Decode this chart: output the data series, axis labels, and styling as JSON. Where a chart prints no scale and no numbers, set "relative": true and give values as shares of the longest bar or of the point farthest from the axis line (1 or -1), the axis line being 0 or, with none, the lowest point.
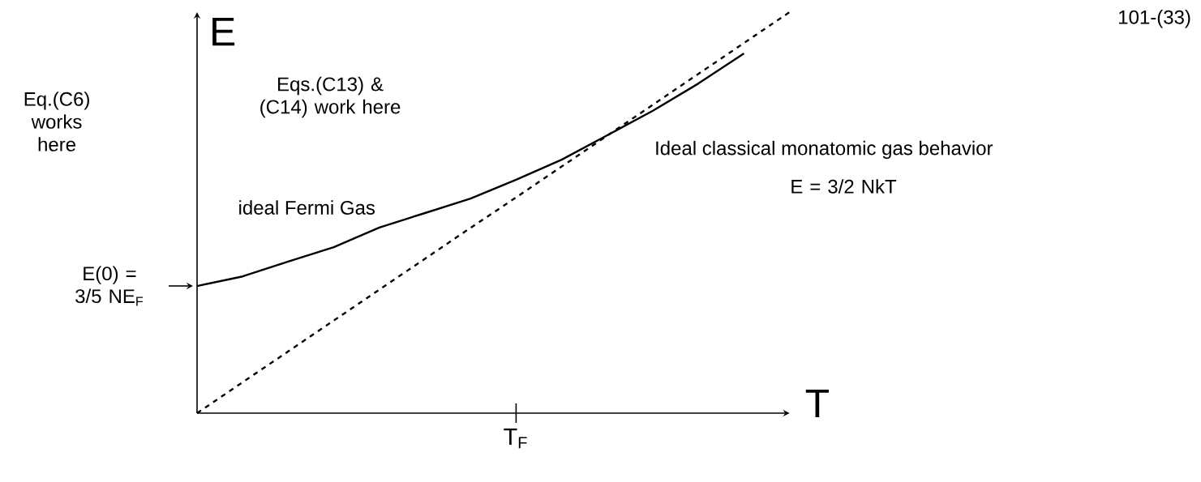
{
  "chart_data": {
    "type": "line",
    "relative": true,
    "xlabel": "T",
    "ylabel": "E",
    "marker": "none",
    "categories": [
      null,
      null,
      null,
      null,
      null,
      null,
      null,
      null,
      null,
      null,
      null,
      null,
      null,
      null
    ],
    "series": [
      {
        "name": "ideal Fermi Gas",
        "color": "#000000",
        "line_style": "solid",
        "values": [
          0.317,
          0.341,
          0.378,
          0.414,
          0.463,
          0.499,
          0.535,
          0.582,
          0.632,
          0.693,
          0.754,
          0.822,
          0.897,
          null
        ]
      },
      {
        "name": "Ideal classical monatomic gas behavior",
        "color": "#000000",
        "line_style": "dashed",
        "values": [
          0,
          0.077,
          0.154,
          0.231,
          0.308,
          0.385,
          0.462,
          0.538,
          0.615,
          0.692,
          0.769,
          0.846,
          0.923,
          1
        ]
      }
    ],
    "annotations": [
      "E(0) = 3/5 NE$_{F}$",
      "Eq.(C6) works here",
      "Eqs.(C13) & (C14) work here",
      "E = 3/2 NkT",
      "101-(33)",
      "T$_{F}$"
    ]
  }
}
